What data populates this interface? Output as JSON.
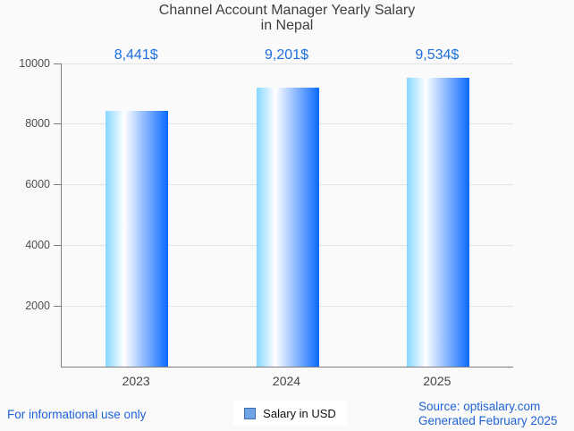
{
  "title": {
    "line1": "Channel Account Manager Yearly Salary",
    "line2": "in Nepal"
  },
  "chart_data": {
    "type": "bar",
    "title": "Channel Account Manager Yearly Salary in Nepal",
    "categories": [
      "2023",
      "2024",
      "2025"
    ],
    "values": [
      8441,
      9201,
      9534
    ],
    "value_labels": [
      "8,441$",
      "9,201$",
      "9,534$"
    ],
    "series_name": "Salary in USD",
    "xlabel": "",
    "ylabel": "",
    "ylim": [
      0,
      10000
    ],
    "yticks": [
      2000,
      4000,
      6000,
      8000,
      10000
    ],
    "grid": true,
    "legend_position": "bottom-center"
  },
  "legend": {
    "label": "Salary in USD",
    "marker_fill": "#6FA3E3",
    "marker_border": "#3E6DB5"
  },
  "footer": {
    "left_note": "For informational use only",
    "source_line1": "Source: optisalary.com",
    "source_line2": "Generated February 2025"
  },
  "colors": {
    "value_label_blue": "#1F6FE0",
    "footer_blue": "#1E62D6",
    "title_gray": "#3F3F3F",
    "axis_gray": "#7D7D7D",
    "grid_gray": "#E3E3E3",
    "background": "#FAFAFA",
    "legend_bg": "#FFFFFF",
    "bar_gradient": [
      "#86D7FF",
      "#FFFFFF",
      "#0A69FF"
    ]
  }
}
